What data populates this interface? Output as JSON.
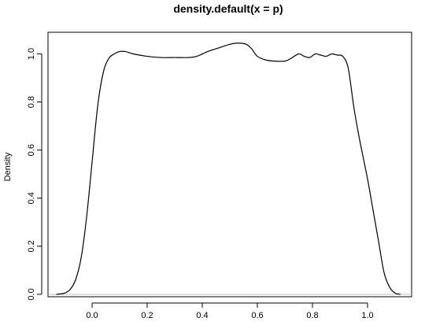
{
  "chart_data": {
    "type": "line",
    "title": "density.default(x = p)",
    "xlabel": "",
    "ylabel": "Density",
    "xlim": [
      -0.16,
      1.16
    ],
    "ylim": [
      -0.01,
      1.09
    ],
    "x_ticks": [
      0.0,
      0.2,
      0.4,
      0.6,
      0.8,
      1.0
    ],
    "x_tick_labels": [
      "0.0",
      "0.2",
      "0.4",
      "0.6",
      "0.8",
      "1.0"
    ],
    "y_ticks": [
      0.0,
      0.2,
      0.4,
      0.6,
      0.8,
      1.0
    ],
    "y_tick_labels": [
      "0.0",
      "0.2",
      "0.4",
      "0.6",
      "0.8",
      "1.0"
    ],
    "baseline": 0,
    "grid": false,
    "legend": "none",
    "series": [
      {
        "color": "#000000",
        "x": [
          -0.13,
          -0.1,
          -0.08,
          -0.06,
          -0.04,
          -0.02,
          0.0,
          0.02,
          0.04,
          0.06,
          0.08,
          0.1,
          0.12,
          0.15,
          0.2,
          0.25,
          0.3,
          0.35,
          0.38,
          0.42,
          0.46,
          0.5,
          0.53,
          0.56,
          0.58,
          0.6,
          0.63,
          0.66,
          0.7,
          0.72,
          0.75,
          0.77,
          0.79,
          0.81,
          0.83,
          0.85,
          0.87,
          0.89,
          0.91,
          0.93,
          0.95,
          0.97,
          1.0,
          1.02,
          1.04,
          1.06,
          1.08,
          1.1,
          1.12
        ],
        "y": [
          0.0,
          0.005,
          0.02,
          0.06,
          0.15,
          0.32,
          0.55,
          0.78,
          0.92,
          0.98,
          1.0,
          1.01,
          1.01,
          1.0,
          0.99,
          0.985,
          0.985,
          0.985,
          0.99,
          1.01,
          1.025,
          1.04,
          1.045,
          1.04,
          1.02,
          0.99,
          0.975,
          0.97,
          0.97,
          0.98,
          1.0,
          0.99,
          0.985,
          1.0,
          0.995,
          0.99,
          1.0,
          0.995,
          0.99,
          0.94,
          0.78,
          0.65,
          0.48,
          0.35,
          0.22,
          0.09,
          0.03,
          0.005,
          0.0
        ]
      }
    ]
  }
}
